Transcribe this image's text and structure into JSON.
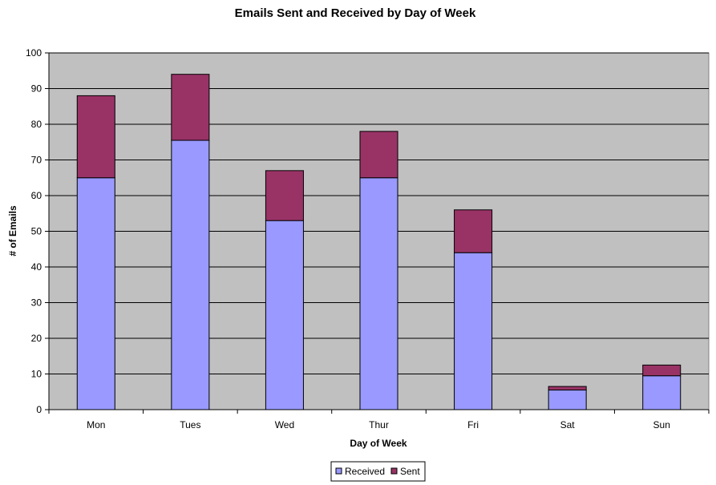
{
  "chart_data": {
    "type": "bar",
    "stacked": true,
    "title": "Emails Sent and Received by Day of Week",
    "xlabel": "Day of Week",
    "ylabel": "# of Emails",
    "categories": [
      "Mon",
      "Tues",
      "Wed",
      "Thur",
      "Fri",
      "Sat",
      "Sun"
    ],
    "series": [
      {
        "name": "Received",
        "color": "#9999ff",
        "values": [
          65,
          75.5,
          53,
          65,
          44,
          5.5,
          9.5
        ]
      },
      {
        "name": "Sent",
        "color": "#993366",
        "values": [
          23,
          18.5,
          14,
          13,
          12,
          1,
          3
        ]
      }
    ],
    "ylim": [
      0,
      100
    ],
    "yticks": [
      0,
      10,
      20,
      30,
      40,
      50,
      60,
      70,
      80,
      90,
      100
    ],
    "grid": true,
    "plot_background": "#c0c0c0",
    "legend_position": "bottom"
  }
}
